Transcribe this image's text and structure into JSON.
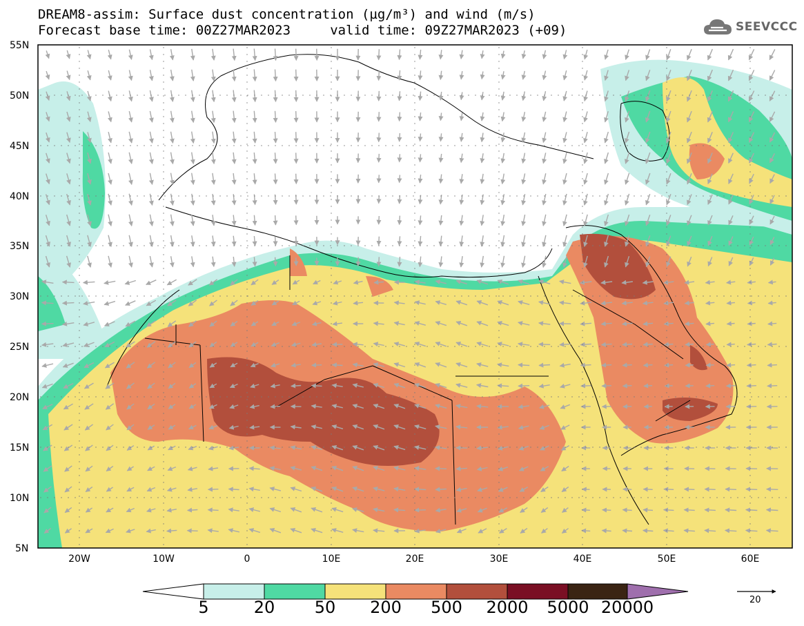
{
  "header": {
    "title_line1": "DREAM8-assim: Surface dust concentration (µg/m³) and wind (m/s)",
    "title_line2": "Forecast base time: 00Z27MAR2023     valid time: 09Z27MAR2023 (+09)"
  },
  "logo": {
    "text": "SEEVCCC",
    "icon": "cloud-icon"
  },
  "map": {
    "projection": "lat-lon",
    "lon_range": [
      -25,
      65
    ],
    "lat_range": [
      5,
      55
    ],
    "lat_ticks": [
      "5N",
      "10N",
      "15N",
      "20N",
      "25N",
      "30N",
      "35N",
      "40N",
      "45N",
      "50N",
      "55N"
    ],
    "lon_ticks": [
      "20W",
      "10W",
      "0",
      "10E",
      "20E",
      "30E",
      "40E",
      "50E",
      "60E"
    ],
    "colors": {
      "ocean_land": "#ffffff",
      "border": "#000000",
      "wind_arrow": "#a9a9a9"
    }
  },
  "colorbar": {
    "labels": [
      "5",
      "20",
      "50",
      "200",
      "500",
      "2000",
      "5000",
      "20000"
    ],
    "colors": [
      "#c7efe9",
      "#4fd9a3",
      "#f5e27a",
      "#ea8a62",
      "#b24f3c",
      "#7a0f24",
      "#3a2413",
      "#9f6fad"
    ],
    "unit": "µg/m³"
  },
  "wind_reference": {
    "label": "20",
    "unit": "m/s"
  }
}
